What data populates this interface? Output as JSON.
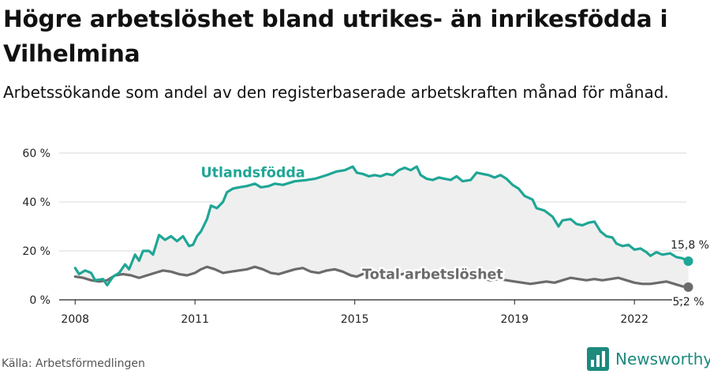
{
  "header": {
    "title": "Högre arbetslöshet bland utrikes- än inrikesfödda i Vilhelmina",
    "subtitle": "Arbetssökande som andel av den registerbaserade arbetskraften månad för månad."
  },
  "footer": {
    "source": "Källa: Arbetsförmedlingen",
    "brand": "Newsworthy"
  },
  "colors": {
    "foreign": "#1fa695",
    "total": "#6b6b6b",
    "band": "#efefef",
    "grid": "#d9d9d9",
    "brand": "#1c8a7d"
  },
  "icons": {
    "brand_logo": "bar-chart-icon"
  },
  "chart_data": {
    "type": "line",
    "title": "Högre arbetslöshet bland utrikes- än inrikesfödda i Vilhelmina",
    "subtitle": "Arbetssökande som andel av den registerbaserade arbetskraften månad för månad.",
    "xlabel": "",
    "ylabel": "",
    "xlim": [
      2007.6,
      2023.3
    ],
    "ylim": [
      0,
      60
    ],
    "y_ticks": [
      0,
      20,
      40,
      60
    ],
    "y_tick_labels": [
      "0 %",
      "20 %",
      "40 %",
      "60 %"
    ],
    "x_ticks": [
      2008,
      2011,
      2015,
      2019,
      2022
    ],
    "x_tick_labels": [
      "2008",
      "2011",
      "2015",
      "2019",
      "2022"
    ],
    "grid": "horizontal",
    "shaded_between_series": true,
    "series": [
      {
        "name": "Utlandsfödda",
        "label": "Utlandsfödda",
        "end_label": "15,8 %",
        "end_value": 15.8,
        "points": [
          [
            2008.0,
            13.0
          ],
          [
            2008.1,
            10.5
          ],
          [
            2008.25,
            12.0
          ],
          [
            2008.4,
            11.0
          ],
          [
            2008.5,
            8.0
          ],
          [
            2008.7,
            8.5
          ],
          [
            2008.8,
            6.0
          ],
          [
            2008.95,
            9.5
          ],
          [
            2009.1,
            11.0
          ],
          [
            2009.25,
            14.5
          ],
          [
            2009.35,
            12.5
          ],
          [
            2009.5,
            18.5
          ],
          [
            2009.6,
            16.0
          ],
          [
            2009.7,
            20.0
          ],
          [
            2009.85,
            20.0
          ],
          [
            2009.95,
            18.5
          ],
          [
            2010.1,
            26.5
          ],
          [
            2010.25,
            24.5
          ],
          [
            2010.4,
            26.0
          ],
          [
            2010.55,
            24.0
          ],
          [
            2010.7,
            26.0
          ],
          [
            2010.85,
            22.0
          ],
          [
            2010.95,
            22.5
          ],
          [
            2011.05,
            26.0
          ],
          [
            2011.15,
            28.0
          ],
          [
            2011.3,
            33.0
          ],
          [
            2011.4,
            38.5
          ],
          [
            2011.55,
            37.5
          ],
          [
            2011.7,
            40.0
          ],
          [
            2011.8,
            44.0
          ],
          [
            2011.95,
            45.5
          ],
          [
            2012.1,
            46.0
          ],
          [
            2012.3,
            46.5
          ],
          [
            2012.5,
            47.5
          ],
          [
            2012.65,
            46.0
          ],
          [
            2012.85,
            46.5
          ],
          [
            2013.0,
            47.5
          ],
          [
            2013.2,
            47.0
          ],
          [
            2013.5,
            48.5
          ],
          [
            2013.8,
            49.0
          ],
          [
            2014.0,
            49.5
          ],
          [
            2014.3,
            51.0
          ],
          [
            2014.55,
            52.5
          ],
          [
            2014.75,
            53.0
          ],
          [
            2014.95,
            54.5
          ],
          [
            2015.05,
            52.0
          ],
          [
            2015.2,
            51.5
          ],
          [
            2015.35,
            50.5
          ],
          [
            2015.5,
            51.0
          ],
          [
            2015.65,
            50.5
          ],
          [
            2015.8,
            51.5
          ],
          [
            2015.95,
            51.0
          ],
          [
            2016.1,
            53.0
          ],
          [
            2016.25,
            54.0
          ],
          [
            2016.4,
            53.0
          ],
          [
            2016.55,
            54.5
          ],
          [
            2016.65,
            51.0
          ],
          [
            2016.8,
            49.5
          ],
          [
            2016.95,
            49.0
          ],
          [
            2017.1,
            50.0
          ],
          [
            2017.25,
            49.5
          ],
          [
            2017.4,
            49.0
          ],
          [
            2017.55,
            50.5
          ],
          [
            2017.7,
            48.5
          ],
          [
            2017.9,
            49.0
          ],
          [
            2018.05,
            52.0
          ],
          [
            2018.2,
            51.5
          ],
          [
            2018.35,
            51.0
          ],
          [
            2018.5,
            50.0
          ],
          [
            2018.65,
            51.0
          ],
          [
            2018.8,
            49.5
          ],
          [
            2018.95,
            47.0
          ],
          [
            2019.1,
            45.5
          ],
          [
            2019.25,
            42.5
          ],
          [
            2019.45,
            41.0
          ],
          [
            2019.55,
            37.5
          ],
          [
            2019.75,
            36.5
          ],
          [
            2019.95,
            34.0
          ],
          [
            2020.1,
            30.0
          ],
          [
            2020.2,
            32.5
          ],
          [
            2020.4,
            33.0
          ],
          [
            2020.55,
            31.0
          ],
          [
            2020.7,
            30.5
          ],
          [
            2020.85,
            31.5
          ],
          [
            2021.0,
            32.0
          ],
          [
            2021.15,
            28.0
          ],
          [
            2021.3,
            26.0
          ],
          [
            2021.45,
            25.5
          ],
          [
            2021.55,
            23.0
          ],
          [
            2021.7,
            22.0
          ],
          [
            2021.85,
            22.5
          ],
          [
            2022.0,
            20.5
          ],
          [
            2022.15,
            21.0
          ],
          [
            2022.3,
            19.5
          ],
          [
            2022.4,
            18.0
          ],
          [
            2022.55,
            19.5
          ],
          [
            2022.7,
            18.5
          ],
          [
            2022.9,
            19.0
          ],
          [
            2023.05,
            17.5
          ],
          [
            2023.2,
            17.0
          ],
          [
            2023.35,
            15.8
          ]
        ]
      },
      {
        "name": "Total arbetslöshet",
        "label": "Total arbetslöshet",
        "end_label": "5,2 %",
        "end_value": 5.2,
        "points": [
          [
            2008.0,
            9.5
          ],
          [
            2008.2,
            9.0
          ],
          [
            2008.4,
            8.0
          ],
          [
            2008.6,
            7.5
          ],
          [
            2008.8,
            8.0
          ],
          [
            2009.0,
            10.0
          ],
          [
            2009.2,
            10.5
          ],
          [
            2009.4,
            10.0
          ],
          [
            2009.6,
            9.0
          ],
          [
            2009.8,
            10.0
          ],
          [
            2010.0,
            11.0
          ],
          [
            2010.2,
            12.0
          ],
          [
            2010.4,
            11.5
          ],
          [
            2010.6,
            10.5
          ],
          [
            2010.8,
            10.0
          ],
          [
            2011.0,
            11.0
          ],
          [
            2011.15,
            12.5
          ],
          [
            2011.3,
            13.5
          ],
          [
            2011.5,
            12.5
          ],
          [
            2011.7,
            11.0
          ],
          [
            2011.9,
            11.5
          ],
          [
            2012.1,
            12.0
          ],
          [
            2012.3,
            12.5
          ],
          [
            2012.5,
            13.5
          ],
          [
            2012.7,
            12.5
          ],
          [
            2012.9,
            11.0
          ],
          [
            2013.1,
            10.5
          ],
          [
            2013.3,
            11.5
          ],
          [
            2013.5,
            12.5
          ],
          [
            2013.7,
            13.0
          ],
          [
            2013.9,
            11.5
          ],
          [
            2014.1,
            11.0
          ],
          [
            2014.3,
            12.0
          ],
          [
            2014.5,
            12.5
          ],
          [
            2014.7,
            11.5
          ],
          [
            2014.9,
            10.0
          ],
          [
            2015.05,
            9.5
          ],
          [
            2015.2,
            10.5
          ],
          [
            2015.4,
            11.0
          ],
          [
            2015.6,
            12.0
          ],
          [
            2015.8,
            11.0
          ],
          [
            2016.0,
            10.0
          ],
          [
            2016.2,
            10.5
          ],
          [
            2016.4,
            11.5
          ],
          [
            2016.6,
            11.0
          ],
          [
            2016.8,
            10.5
          ],
          [
            2017.0,
            10.0
          ],
          [
            2017.2,
            10.0
          ],
          [
            2017.4,
            9.5
          ],
          [
            2017.6,
            9.0
          ],
          [
            2017.8,
            9.5
          ],
          [
            2018.0,
            9.0
          ],
          [
            2018.2,
            8.5
          ],
          [
            2018.4,
            8.0
          ],
          [
            2018.6,
            8.5
          ],
          [
            2018.8,
            8.0
          ],
          [
            2019.0,
            7.5
          ],
          [
            2019.2,
            7.0
          ],
          [
            2019.4,
            6.5
          ],
          [
            2019.6,
            7.0
          ],
          [
            2019.8,
            7.5
          ],
          [
            2020.0,
            7.0
          ],
          [
            2020.2,
            8.0
          ],
          [
            2020.4,
            9.0
          ],
          [
            2020.6,
            8.5
          ],
          [
            2020.8,
            8.0
          ],
          [
            2021.0,
            8.5
          ],
          [
            2021.2,
            8.0
          ],
          [
            2021.4,
            8.5
          ],
          [
            2021.6,
            9.0
          ],
          [
            2021.8,
            8.0
          ],
          [
            2022.0,
            7.0
          ],
          [
            2022.2,
            6.5
          ],
          [
            2022.4,
            6.5
          ],
          [
            2022.6,
            7.0
          ],
          [
            2022.8,
            7.5
          ],
          [
            2023.0,
            6.5
          ],
          [
            2023.2,
            5.5
          ],
          [
            2023.35,
            5.2
          ]
        ]
      }
    ]
  }
}
